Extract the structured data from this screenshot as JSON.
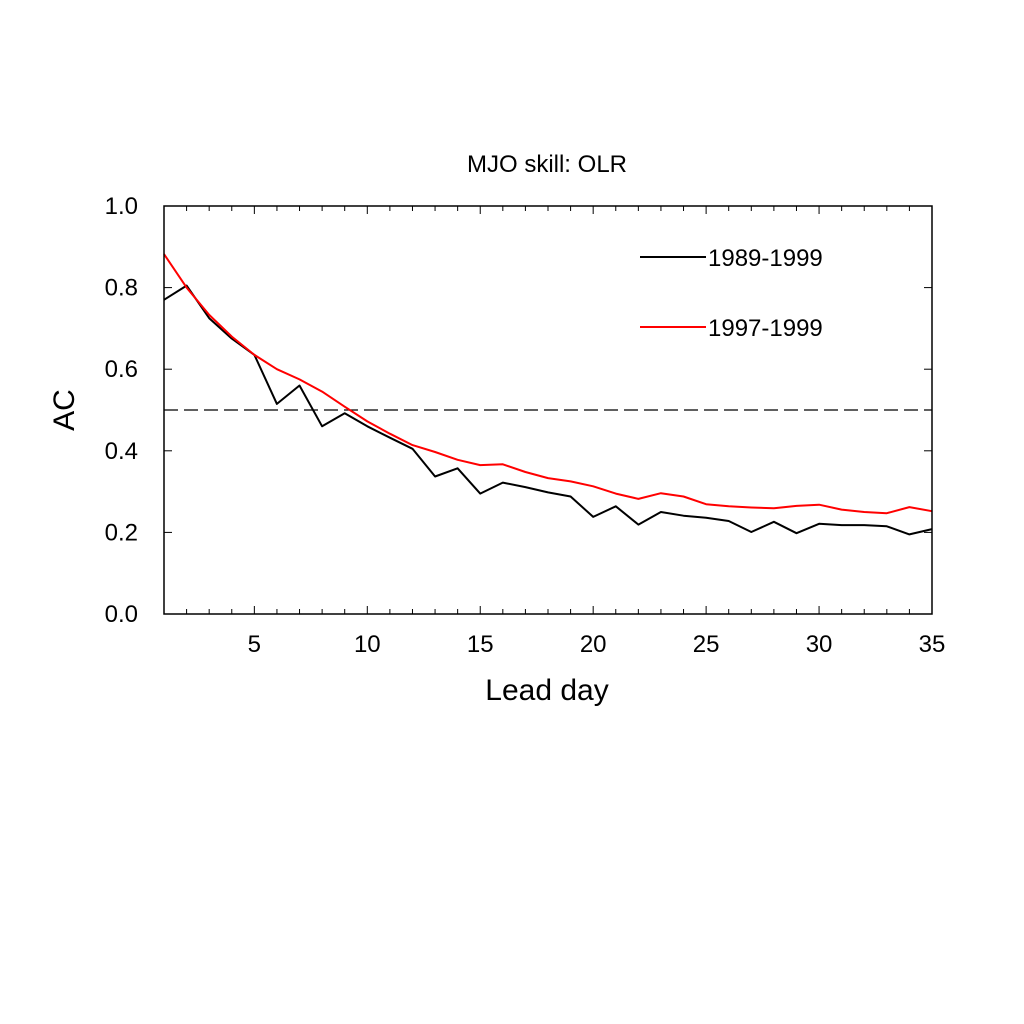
{
  "chart_data": {
    "type": "line",
    "title": "MJO skill: OLR",
    "xlabel": "Lead day",
    "ylabel": "AC",
    "xlim": [
      1,
      35
    ],
    "ylim": [
      0,
      1
    ],
    "x_ticks": [
      5,
      10,
      15,
      20,
      25,
      30,
      35
    ],
    "y_ticks": [
      "0.0",
      "0.2",
      "0.4",
      "0.6",
      "0.8",
      "1.0"
    ],
    "reference_line": {
      "y": 0.5,
      "style": "dashed",
      "color": "#000000"
    },
    "legend_placement": "top-right",
    "grid": false,
    "x": [
      1,
      2,
      3,
      4,
      5,
      6,
      7,
      8,
      9,
      10,
      11,
      12,
      13,
      14,
      15,
      16,
      17,
      18,
      19,
      20,
      21,
      22,
      23,
      24,
      25,
      26,
      27,
      28,
      29,
      30,
      31,
      32,
      33,
      34,
      35
    ],
    "series": [
      {
        "name": "1989-1999",
        "color": "#000000",
        "values": [
          0.77,
          0.805,
          0.725,
          0.675,
          0.635,
          0.515,
          0.56,
          0.46,
          0.492,
          0.46,
          0.432,
          0.405,
          0.337,
          0.357,
          0.295,
          0.322,
          0.311,
          0.298,
          0.288,
          0.238,
          0.264,
          0.219,
          0.25,
          0.241,
          0.236,
          0.228,
          0.201,
          0.226,
          0.198,
          0.221,
          0.218,
          0.218,
          0.215,
          0.195,
          0.208
        ]
      },
      {
        "name": "1997-1999",
        "color": "#ff0000",
        "values": [
          0.882,
          0.8,
          0.733,
          0.68,
          0.635,
          0.6,
          0.575,
          0.545,
          0.508,
          0.472,
          0.442,
          0.414,
          0.397,
          0.378,
          0.365,
          0.367,
          0.348,
          0.333,
          0.325,
          0.313,
          0.295,
          0.282,
          0.296,
          0.288,
          0.269,
          0.264,
          0.261,
          0.259,
          0.265,
          0.268,
          0.256,
          0.25,
          0.247,
          0.262,
          0.252
        ]
      }
    ]
  }
}
